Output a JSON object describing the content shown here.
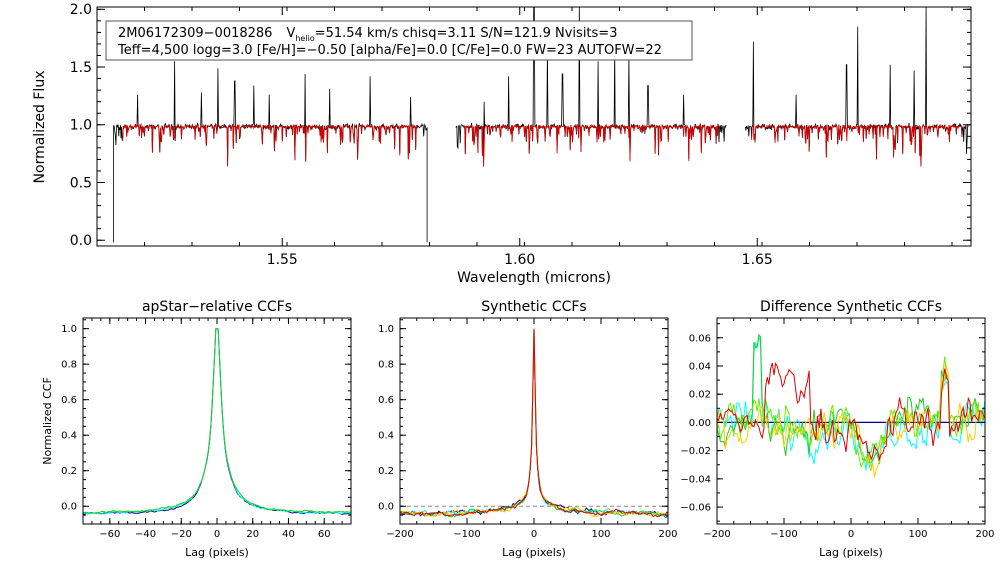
{
  "header": {
    "line1_id": "2M06172309−0018286",
    "line1_v": "V",
    "line1_sub": "helio",
    "line1_rest": "=51.54 km/s  chisq=3.11  S/N=121.9  Nvisits=3",
    "line2": "Teff=4,500 logg=3.0 [Fe/H]=−0.50 [alpha/Fe]=0.0 [C/Fe]=0.0 FW=23 AUTOFW=22"
  },
  "chart_data": [
    {
      "type": "line",
      "name": "spectrum",
      "title": "",
      "xlabel": "Wavelength (microns)",
      "ylabel": "Normalized Flux",
      "xlim": [
        1.511,
        1.695
      ],
      "ylim": [
        -0.05,
        2.02
      ],
      "xticks": [
        {
          "v": 1.55,
          "label": "1.55"
        },
        {
          "v": 1.6,
          "label": "1.60"
        },
        {
          "v": 1.65,
          "label": "1.65"
        }
      ],
      "yticks": [
        {
          "v": 0.0,
          "label": "0.0"
        },
        {
          "v": 0.5,
          "label": "0.5"
        },
        {
          "v": 1.0,
          "label": "1.0"
        },
        {
          "v": 1.5,
          "label": "1.5"
        },
        {
          "v": 2.0,
          "label": "2.0"
        }
      ],
      "chips": [
        [
          1.5145,
          1.5805
        ],
        [
          1.5865,
          1.6435
        ],
        [
          1.6475,
          1.6945
        ]
      ],
      "emission_lines": [
        {
          "x": 1.5195,
          "y": 1.26
        },
        {
          "x": 1.5273,
          "y": 1.55
        },
        {
          "x": 1.533,
          "y": 1.28
        },
        {
          "x": 1.5365,
          "y": 1.49
        },
        {
          "x": 1.54,
          "y": 1.38
        },
        {
          "x": 1.544,
          "y": 1.34
        },
        {
          "x": 1.5473,
          "y": 1.26
        },
        {
          "x": 1.5548,
          "y": 1.44
        },
        {
          "x": 1.56,
          "y": 1.31
        },
        {
          "x": 1.5685,
          "y": 1.42
        },
        {
          "x": 1.577,
          "y": 1.24
        },
        {
          "x": 1.5925,
          "y": 1.2
        },
        {
          "x": 1.5977,
          "y": 1.42
        },
        {
          "x": 1.603,
          "y": 2.05
        },
        {
          "x": 1.6058,
          "y": 1.66
        },
        {
          "x": 1.609,
          "y": 1.44
        },
        {
          "x": 1.6125,
          "y": 2.05
        },
        {
          "x": 1.6165,
          "y": 1.55
        },
        {
          "x": 1.62,
          "y": 1.66
        },
        {
          "x": 1.623,
          "y": 1.6
        },
        {
          "x": 1.627,
          "y": 1.34
        },
        {
          "x": 1.6345,
          "y": 1.26
        },
        {
          "x": 1.6492,
          "y": 1.72
        },
        {
          "x": 1.6582,
          "y": 1.26
        },
        {
          "x": 1.6688,
          "y": 1.52
        },
        {
          "x": 1.6711,
          "y": 1.85
        },
        {
          "x": 1.678,
          "y": 1.52
        },
        {
          "x": 1.683,
          "y": 1.47
        },
        {
          "x": 1.6855,
          "y": 2.05
        }
      ],
      "series": [
        {
          "name": "observed",
          "color": "#000000"
        },
        {
          "name": "model",
          "color": "#d40000"
        }
      ]
    },
    {
      "type": "line",
      "name": "apstar-ccf",
      "title": "apStar−relative CCFs",
      "xlabel": "Lag (pixels)",
      "ylabel": "Normalized CCF",
      "xlim": [
        -75,
        75
      ],
      "ylim": [
        -0.1,
        1.06
      ],
      "xticks": [
        {
          "v": -60,
          "label": "−60"
        },
        {
          "v": -40,
          "label": "−40"
        },
        {
          "v": -20,
          "label": "−20"
        },
        {
          "v": 0,
          "label": "0"
        },
        {
          "v": 20,
          "label": "20"
        },
        {
          "v": 40,
          "label": "40"
        },
        {
          "v": 60,
          "label": "60"
        }
      ],
      "yticks": [
        {
          "v": 0.0,
          "label": "0.0"
        },
        {
          "v": 0.2,
          "label": "0.2"
        },
        {
          "v": 0.4,
          "label": "0.4"
        },
        {
          "v": 0.6,
          "label": "0.6"
        },
        {
          "v": 0.8,
          "label": "0.8"
        },
        {
          "v": 1.0,
          "label": "1.0"
        }
      ],
      "series": [
        {
          "name": "visit-1",
          "color": "#000080"
        },
        {
          "name": "visit-2",
          "color": "#00ffff"
        },
        {
          "name": "visit-3",
          "color": "#22cc22"
        }
      ]
    },
    {
      "type": "line",
      "name": "synthetic-ccf",
      "title": "Synthetic CCFs",
      "xlabel": "Lag (pixels)",
      "ylabel": "",
      "xlim": [
        -200,
        200
      ],
      "ylim": [
        -0.1,
        1.06
      ],
      "xticks": [
        {
          "v": -200,
          "label": "−200"
        },
        {
          "v": -100,
          "label": "−100"
        },
        {
          "v": 0,
          "label": "0"
        },
        {
          "v": 100,
          "label": "100"
        },
        {
          "v": 200,
          "label": "200"
        }
      ],
      "yticks": [
        {
          "v": 0.0,
          "label": "0.0"
        },
        {
          "v": 0.2,
          "label": "0.2"
        },
        {
          "v": 0.4,
          "label": "0.4"
        },
        {
          "v": 0.6,
          "label": "0.6"
        },
        {
          "v": 0.8,
          "label": "0.8"
        },
        {
          "v": 1.0,
          "label": "1.0"
        }
      ],
      "series": [
        {
          "name": "template-1",
          "color": "#000080"
        },
        {
          "name": "template-2",
          "color": "#00ffff"
        },
        {
          "name": "template-3",
          "color": "#22cc22"
        },
        {
          "name": "template-4",
          "color": "#ffcc00"
        },
        {
          "name": "template-5",
          "color": "#e00000"
        }
      ]
    },
    {
      "type": "line",
      "name": "difference-ccf",
      "title": "Difference Synthetic CCFs",
      "xlabel": "Lag (pixels)",
      "ylabel": "",
      "xlim": [
        -200,
        200
      ],
      "ylim": [
        -0.072,
        0.074
      ],
      "xticks": [
        {
          "v": -200,
          "label": "−200"
        },
        {
          "v": -100,
          "label": "−100"
        },
        {
          "v": 0,
          "label": "0"
        },
        {
          "v": 100,
          "label": "100"
        },
        {
          "v": 200,
          "label": "200"
        }
      ],
      "yticks": [
        {
          "v": -0.06,
          "label": "−0.06"
        },
        {
          "v": -0.04,
          "label": "−0.04"
        },
        {
          "v": -0.02,
          "label": "−0.02"
        },
        {
          "v": 0.0,
          "label": "0.00"
        },
        {
          "v": 0.02,
          "label": "0.02"
        },
        {
          "v": 0.04,
          "label": "0.04"
        },
        {
          "v": 0.06,
          "label": "0.06"
        }
      ],
      "series": [
        {
          "name": "diff-1",
          "color": "#00ffff"
        },
        {
          "name": "diff-2",
          "color": "#22cc22"
        },
        {
          "name": "diff-3",
          "color": "#66ee00"
        },
        {
          "name": "diff-4",
          "color": "#ffcc00"
        },
        {
          "name": "diff-5",
          "color": "#e00000"
        }
      ]
    }
  ]
}
